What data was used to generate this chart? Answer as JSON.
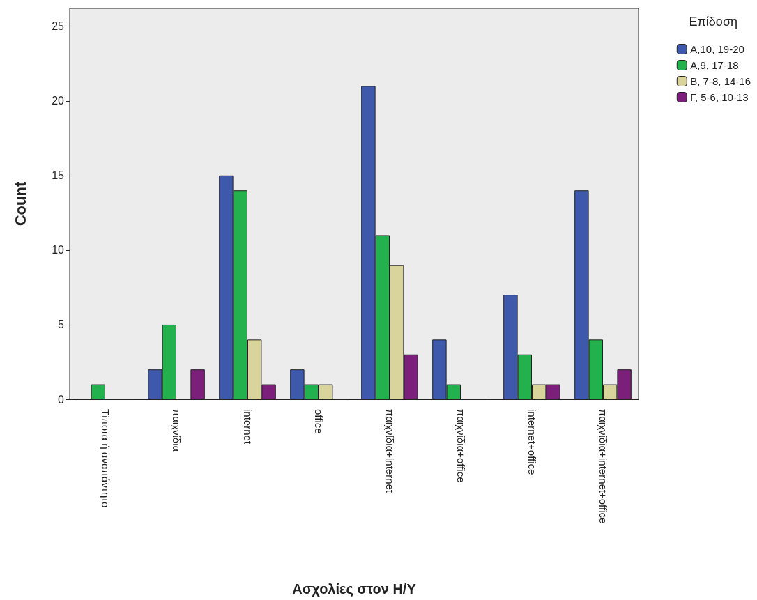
{
  "chart_data": {
    "type": "bar",
    "xlabel": "Ασχολίες στον Η/Υ",
    "ylabel": "Count",
    "legend_title": "Επίδοση",
    "categories": [
      "Τίποτα ή αναπάντητο",
      "παιχνίδια",
      "internet",
      "office",
      "παιχνίδια+internet",
      "παιχνίδια+office",
      "internet+office",
      "παιχνίδια+internet+office"
    ],
    "series": [
      {
        "name": "Α,10, 19-20",
        "color": "#3e58ac",
        "values": [
          0,
          2,
          15,
          2,
          21,
          4,
          7,
          14
        ]
      },
      {
        "name": "Α,9, 17-18",
        "color": "#22b14c",
        "values": [
          1,
          5,
          14,
          1,
          11,
          1,
          3,
          4
        ]
      },
      {
        "name": "Β, 7-8, 14-16",
        "color": "#d9d39c",
        "values": [
          0,
          0,
          4,
          1,
          9,
          0,
          1,
          1
        ]
      },
      {
        "name": "Γ, 5-6, 10-13",
        "color": "#7b1f7b",
        "values": [
          0,
          2,
          1,
          0,
          3,
          0,
          1,
          2
        ]
      }
    ],
    "ylim": [
      0,
      26.2
    ],
    "yticks": [
      0,
      5,
      10,
      15,
      20,
      25
    ],
    "grid": false,
    "legend": "top right"
  }
}
